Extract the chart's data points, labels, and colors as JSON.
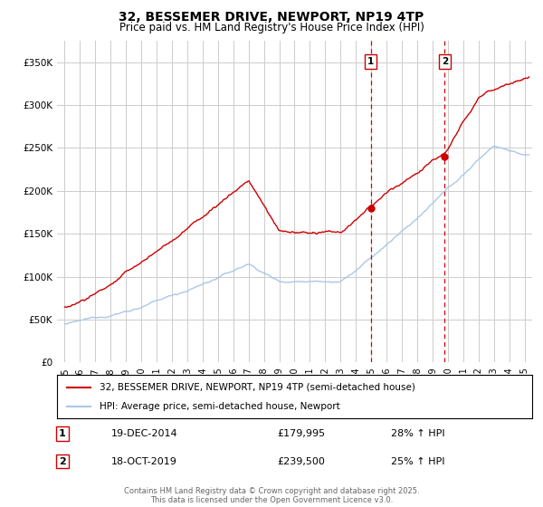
{
  "title": "32, BESSEMER DRIVE, NEWPORT, NP19 4TP",
  "subtitle": "Price paid vs. HM Land Registry's House Price Index (HPI)",
  "yticks": [
    0,
    50000,
    100000,
    150000,
    200000,
    250000,
    300000,
    350000
  ],
  "ylim": [
    0,
    375000
  ],
  "xlim_start": 1994.5,
  "xlim_end": 2025.5,
  "marker1_x": 2014.97,
  "marker1_y": 179995,
  "marker1_label": "1",
  "marker1_date": "19-DEC-2014",
  "marker1_price": "£179,995",
  "marker1_hpi": "28% ↑ HPI",
  "marker2_x": 2019.8,
  "marker2_y": 239500,
  "marker2_label": "2",
  "marker2_date": "18-OCT-2019",
  "marker2_price": "£239,500",
  "marker2_hpi": "25% ↑ HPI",
  "legend_line1": "32, BESSEMER DRIVE, NEWPORT, NP19 4TP (semi-detached house)",
  "legend_line2": "HPI: Average price, semi-detached house, Newport",
  "footer": "Contains HM Land Registry data © Crown copyright and database right 2025.\nThis data is licensed under the Open Government Licence v3.0.",
  "line1_color": "#cc0000",
  "line2_color": "#aac8e8",
  "background_color": "#ffffff",
  "grid_color": "#cccccc",
  "xticks": [
    1995,
    1996,
    1997,
    1998,
    1999,
    2000,
    2001,
    2002,
    2003,
    2004,
    2005,
    2006,
    2007,
    2008,
    2009,
    2010,
    2011,
    2012,
    2013,
    2014,
    2015,
    2016,
    2017,
    2018,
    2019,
    2020,
    2021,
    2022,
    2023,
    2024,
    2025
  ]
}
